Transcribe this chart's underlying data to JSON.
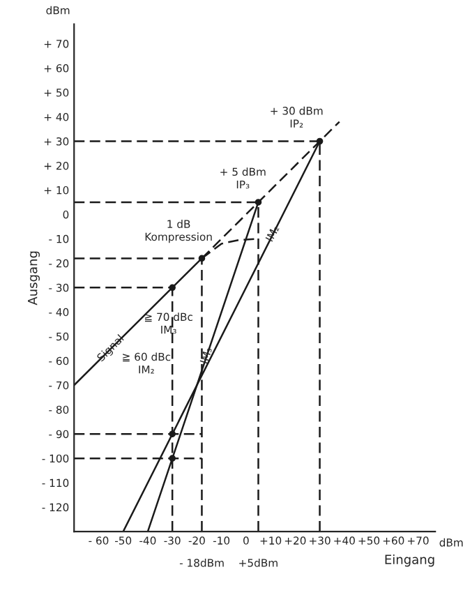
{
  "chart_data": {
    "type": "line",
    "xlabel": "Eingang",
    "ylabel": "Ausgang",
    "xlim": [
      -70,
      77
    ],
    "ylim": [
      -130,
      78
    ],
    "xticks": [
      {
        "value": -60,
        "label": "- 60"
      },
      {
        "value": -50,
        "label": "-50"
      },
      {
        "value": -40,
        "label": "-40"
      },
      {
        "value": -30,
        "label": "-30"
      },
      {
        "value": -20,
        "label": "-20"
      },
      {
        "value": -10,
        "label": "-10"
      },
      0,
      {
        "value": 10,
        "label": "+10"
      },
      {
        "value": 20,
        "label": "+20"
      },
      {
        "value": 30,
        "label": "+30"
      },
      {
        "value": 40,
        "label": "+40"
      },
      {
        "value": 50,
        "label": "+50"
      },
      {
        "value": 60,
        "label": "+60"
      },
      {
        "value": 70,
        "label": "+70"
      }
    ],
    "yticks": [
      {
        "value": -120,
        "label": "- 120"
      },
      {
        "value": -110,
        "label": "- 110"
      },
      {
        "value": -100,
        "label": "- 100"
      },
      {
        "value": -90,
        "label": "- 90"
      },
      {
        "value": -80,
        "label": "- 80"
      },
      {
        "value": -70,
        "label": "- 70"
      },
      {
        "value": -60,
        "label": "- 60"
      },
      {
        "value": -50,
        "label": "- 50"
      },
      {
        "value": -40,
        "label": "- 40"
      },
      {
        "value": -30,
        "label": "- 30"
      },
      {
        "value": -20,
        "label": "- 20"
      },
      {
        "value": -10,
        "label": "- 10"
      },
      0,
      {
        "value": 10,
        "label": "+ 10"
      },
      {
        "value": 20,
        "label": "+ 20"
      },
      {
        "value": 30,
        "label": "+ 30"
      },
      {
        "value": 40,
        "label": "+ 40"
      },
      {
        "value": 50,
        "label": "+ 50"
      },
      {
        "value": 60,
        "label": "+ 60"
      },
      {
        "value": 70,
        "label": "+ 70"
      }
    ],
    "grid": false,
    "legend": false,
    "marker": "none",
    "line_style": "solid",
    "series": [
      {
        "color": "#1a1a1a",
        "x": [
          -70,
          -18
        ],
        "values": [
          -70,
          -18
        ]
      },
      {
        "type": "line",
        "color": "#1a1a1a",
        "line_style": "dashed",
        "x": [
          -18,
          38
        ],
        "values": [
          -18,
          38
        ]
      },
      {
        "type": "line",
        "color": "#1a1a1a",
        "line_style": "dashed",
        "x": [
          -18,
          -10,
          -3,
          5
        ],
        "values": [
          -18,
          -12,
          -10.5,
          -10
        ]
      },
      {
        "type": "line",
        "color": "#1a1a1a",
        "x": [
          -40,
          5
        ],
        "values": [
          -130,
          5
        ]
      },
      {
        "type": "line",
        "color": "#1a1a1a",
        "x": [
          -50,
          30
        ],
        "values": [
          -130,
          30
        ]
      },
      {
        "type": "line",
        "color": "#1a1a1a",
        "line_style": "dashed",
        "x": [
          -70,
          30
        ],
        "values": [
          30,
          30
        ]
      },
      {
        "type": "line",
        "color": "#1a1a1a",
        "line_style": "dashed",
        "x": [
          30,
          30
        ],
        "values": [
          -130,
          30
        ]
      },
      {
        "type": "line",
        "color": "#1a1a1a",
        "line_style": "dashed",
        "x": [
          -70,
          5
        ],
        "values": [
          5,
          5
        ]
      },
      {
        "type": "line",
        "color": "#1a1a1a",
        "line_style": "dashed",
        "x": [
          5,
          5
        ],
        "values": [
          -130,
          5
        ]
      },
      {
        "type": "line",
        "color": "#1a1a1a",
        "line_style": "dashed",
        "x": [
          -70,
          -18
        ],
        "values": [
          -18,
          -18
        ]
      },
      {
        "type": "line",
        "color": "#1a1a1a",
        "line_style": "dashed",
        "x": [
          -18,
          -18
        ],
        "values": [
          -130,
          -18
        ]
      },
      {
        "type": "line",
        "color": "#1a1a1a",
        "line_style": "dashed",
        "x": [
          -70,
          -30
        ],
        "values": [
          -30,
          -30
        ]
      },
      {
        "type": "line",
        "color": "#1a1a1a",
        "line_style": "dashed",
        "x": [
          -30,
          -30
        ],
        "values": [
          -130,
          -30
        ]
      },
      {
        "type": "line",
        "color": "#1a1a1a",
        "line_style": "dashed",
        "x": [
          -70,
          -18
        ],
        "values": [
          -90,
          -90
        ]
      },
      {
        "type": "line",
        "color": "#1a1a1a",
        "line_style": "dashed",
        "x": [
          -70,
          -18
        ],
        "values": [
          -100,
          -100
        ]
      },
      {
        "type": "scatter",
        "color": "#1a1a1a",
        "marker": "circle",
        "x": [
          30,
          5,
          -18,
          -30,
          -30,
          -30
        ],
        "values": [
          30,
          5,
          -18,
          -30,
          -90,
          -100
        ]
      }
    ],
    "annotations": [
      {
        "text": "+ 30 dBm\nIP₂",
        "x": 30,
        "y": 30
      },
      {
        "text": "+ 5 dBm\nIP₃",
        "x": 5,
        "y": 5
      },
      {
        "text": "1 dB\nKompression",
        "x": -18,
        "y": -18
      },
      {
        "text": "Signal",
        "x": -55,
        "y": -55
      },
      {
        "text": "IM₃",
        "x": -16,
        "y": -58
      },
      {
        "text": "IM₂",
        "x": 11,
        "y": -8
      },
      {
        "text": "≧ 70 dBc\nIM₃",
        "x": -30,
        "y": -45
      },
      "≧ 60 dBc\nIM₂",
      "- 18dBm",
      "+5dBm",
      "dBm",
      "dBm"
    ]
  }
}
